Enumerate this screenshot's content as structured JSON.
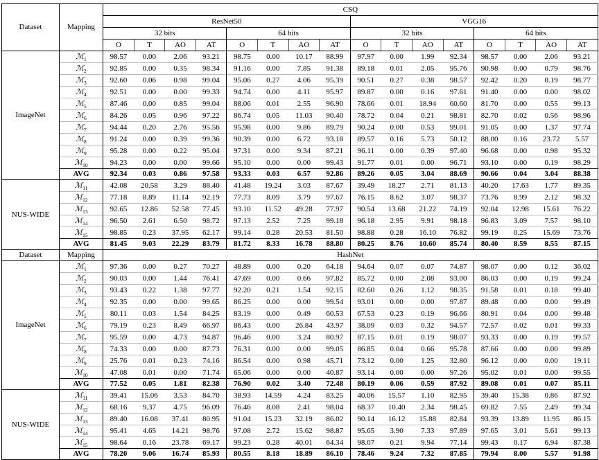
{
  "table": {
    "corner": {
      "dataset": "Dataset",
      "mapping": "Mapping"
    },
    "map_symbol": "ℳ",
    "avg_label": "AVG",
    "methods": {
      "top": "CSQ",
      "mid": "HashNet"
    },
    "networks": [
      "ResNet50",
      "VGG16"
    ],
    "bit_widths": [
      "32 bits",
      "64 bits"
    ],
    "metrics": [
      "O",
      "T",
      "AO",
      "AT"
    ],
    "sections": [
      {
        "method": "CSQ",
        "groups": [
          {
            "dataset": "ImageNet",
            "rows": [
              {
                "map": "ℳ",
                "sub": "1",
                "values": [
                  "98.57",
                  "0.00",
                  "2.06",
                  "93.21",
                  "98.75",
                  "0.00",
                  "10.17",
                  "88.99",
                  "97.97",
                  "0.00",
                  "1.99",
                  "92.34",
                  "98.57",
                  "0.00",
                  "2.06",
                  "93.21"
                ]
              },
              {
                "map": "ℳ",
                "sub": "2",
                "values": [
                  "92.85",
                  "0.00",
                  "0.35",
                  "98.34",
                  "91.16",
                  "0.00",
                  "7.85",
                  "91.38",
                  "89.18",
                  "0.01",
                  "2.05",
                  "95.76",
                  "90.98",
                  "0.00",
                  "0.79",
                  "98.76"
                ]
              },
              {
                "map": "ℳ",
                "sub": "3",
                "values": [
                  "92.60",
                  "0.06",
                  "0.98",
                  "99.04",
                  "95.06",
                  "0.27",
                  "4.06",
                  "95.39",
                  "90.51",
                  "0.27",
                  "0.38",
                  "98.57",
                  "92.42",
                  "0.20",
                  "0.19",
                  "98.77"
                ]
              },
              {
                "map": "ℳ",
                "sub": "4",
                "values": [
                  "92.51",
                  "0.00",
                  "0.00",
                  "99.33",
                  "94.74",
                  "0.00",
                  "4.11",
                  "95.97",
                  "89.87",
                  "0.00",
                  "0.16",
                  "97.61",
                  "91.40",
                  "0.00",
                  "0.00",
                  "98.02"
                ]
              },
              {
                "map": "ℳ",
                "sub": "5",
                "values": [
                  "87.46",
                  "0.00",
                  "0.85",
                  "99.04",
                  "88.06",
                  "0.01",
                  "2.55",
                  "96.90",
                  "78.66",
                  "0.01",
                  "18.94",
                  "60.60",
                  "81.70",
                  "0.00",
                  "0.55",
                  "99.13"
                ]
              },
              {
                "map": "ℳ",
                "sub": "6",
                "values": [
                  "84.26",
                  "0.05",
                  "0.96",
                  "97.22",
                  "86.74",
                  "0.05",
                  "11.03",
                  "90.40",
                  "78.72",
                  "0.04",
                  "0.21",
                  "98.81",
                  "82.70",
                  "0.02",
                  "0.56",
                  "98.96"
                ]
              },
              {
                "map": "ℳ",
                "sub": "7",
                "values": [
                  "94.44",
                  "0.20",
                  "2.76",
                  "95.56",
                  "95.98",
                  "0.00",
                  "9.86",
                  "89.79",
                  "90.24",
                  "0.00",
                  "0.53",
                  "99.01",
                  "91.05",
                  "0.00",
                  "1.37",
                  "97.74"
                ]
              },
              {
                "map": "ℳ",
                "sub": "8",
                "values": [
                  "91.24",
                  "0.00",
                  "0.39",
                  "99.36",
                  "90.39",
                  "0.00",
                  "6.72",
                  "93.18",
                  "89.57",
                  "0.16",
                  "5.73",
                  "50.12",
                  "88.00",
                  "0.16",
                  "23.72",
                  "5.57"
                ]
              },
              {
                "map": "ℳ",
                "sub": "9",
                "values": [
                  "95.28",
                  "0.00",
                  "0.22",
                  "95.04",
                  "97.31",
                  "0.00",
                  "9.34",
                  "87.21",
                  "96.11",
                  "0.00",
                  "0.39",
                  "97.40",
                  "96.68",
                  "0.00",
                  "0.98",
                  "95.32"
                ]
              },
              {
                "map": "ℳ",
                "sub": "10",
                "values": [
                  "94.23",
                  "0.00",
                  "0.00",
                  "99.66",
                  "95.10",
                  "0.00",
                  "0.00",
                  "99.43",
                  "91.77",
                  "0.01",
                  "0.00",
                  "96.71",
                  "93.10",
                  "0.00",
                  "0.19",
                  "98.29"
                ]
              },
              {
                "map": "AVG",
                "values": [
                  "92.34",
                  "0.03",
                  "0.86",
                  "97.58",
                  "93.33",
                  "0.03",
                  "6.57",
                  "92.86",
                  "89.26",
                  "0.05",
                  "3.04",
                  "88.69",
                  "90.66",
                  "0.04",
                  "3.04",
                  "88.38"
                ]
              }
            ]
          },
          {
            "dataset": "NUS-WIDE",
            "rows": [
              {
                "map": "ℳ",
                "sub": "11",
                "values": [
                  "42.08",
                  "20.58",
                  "3.29",
                  "88.40",
                  "41.48",
                  "19.24",
                  "3.03",
                  "87.67",
                  "39.49",
                  "18.27",
                  "2.71",
                  "81.13",
                  "40.20",
                  "17.63",
                  "1.77",
                  "89.35"
                ]
              },
              {
                "map": "ℳ",
                "sub": "12",
                "values": [
                  "77.18",
                  "8.89",
                  "11.14",
                  "92.19",
                  "77.73",
                  "8.09",
                  "3.79",
                  "97.67",
                  "76.15",
                  "8.62",
                  "3.07",
                  "98.37",
                  "73.76",
                  "8.99",
                  "2.12",
                  "98.32"
                ]
              },
              {
                "map": "ℳ",
                "sub": "13",
                "values": [
                  "92.65",
                  "12.86",
                  "52.58",
                  "77.45",
                  "93.10",
                  "11.52",
                  "49.28",
                  "77.97",
                  "90.54",
                  "13.68",
                  "21.22",
                  "74.19",
                  "92.04",
                  "12.98",
                  "15.61",
                  "76.22"
                ]
              },
              {
                "map": "ℳ",
                "sub": "14",
                "values": [
                  "96.50",
                  "2.61",
                  "6.50",
                  "98.72",
                  "97.13",
                  "2.52",
                  "7.25",
                  "99.18",
                  "96.18",
                  "2.95",
                  "9.91",
                  "98.18",
                  "96.83",
                  "3.09",
                  "7.57",
                  "98.10"
                ]
              },
              {
                "map": "ℳ",
                "sub": "15",
                "values": [
                  "98.85",
                  "0.23",
                  "37.95",
                  "62.17",
                  "99.14",
                  "0.28",
                  "20.53",
                  "81.50",
                  "98.88",
                  "0.28",
                  "16.10",
                  "76.82",
                  "99.19",
                  "0.25",
                  "15.69",
                  "73.76"
                ]
              },
              {
                "map": "AVG",
                "values": [
                  "81.45",
                  "9.03",
                  "22.29",
                  "83.79",
                  "81.72",
                  "8.33",
                  "16.78",
                  "88.80",
                  "80.25",
                  "8.76",
                  "10.60",
                  "85.74",
                  "80.40",
                  "8.59",
                  "8.55",
                  "87.15"
                ]
              }
            ]
          }
        ]
      },
      {
        "method": "HashNet",
        "groups": [
          {
            "dataset": "ImageNet",
            "rows": [
              {
                "map": "ℳ",
                "sub": "1",
                "values": [
                  "97.36",
                  "0.00",
                  "0.27",
                  "70.27",
                  "48.89",
                  "0.00",
                  "0.20",
                  "64.18",
                  "94.64",
                  "0.07",
                  "0.07",
                  "74.87",
                  "98.07",
                  "0.00",
                  "0.12",
                  "36.02"
                ]
              },
              {
                "map": "ℳ",
                "sub": "2",
                "values": [
                  "90.03",
                  "0.00",
                  "1.44",
                  "76.41",
                  "47.69",
                  "0.00",
                  "0.66",
                  "97.82",
                  "85.72",
                  "0.00",
                  "2.08",
                  "93.00",
                  "86.03",
                  "0.00",
                  "0.19",
                  "99.24"
                ]
              },
              {
                "map": "ℳ",
                "sub": "3",
                "values": [
                  "93.43",
                  "0.22",
                  "1.38",
                  "97.77",
                  "92.20",
                  "0.21",
                  "1.54",
                  "92.15",
                  "82.60",
                  "0.26",
                  "1.12",
                  "98.35",
                  "91.58",
                  "0.01",
                  "0.18",
                  "99.40"
                ]
              },
              {
                "map": "ℳ",
                "sub": "4",
                "values": [
                  "92.35",
                  "0.00",
                  "0.00",
                  "99.65",
                  "86.25",
                  "0.00",
                  "0.00",
                  "99.54",
                  "93.01",
                  "0.00",
                  "0.00",
                  "97.87",
                  "89.48",
                  "0.00",
                  "0.00",
                  "99.49"
                ]
              },
              {
                "map": "ℳ",
                "sub": "5",
                "values": [
                  "80.11",
                  "0.03",
                  "1.54",
                  "84.25",
                  "83.19",
                  "0.00",
                  "0.49",
                  "60.53",
                  "67.53",
                  "0.23",
                  "0.19",
                  "96.66",
                  "80.91",
                  "0.04",
                  "0.00",
                  "99.48"
                ]
              },
              {
                "map": "ℳ",
                "sub": "6",
                "values": [
                  "79.19",
                  "0.23",
                  "8.49",
                  "66.97",
                  "86.43",
                  "0.00",
                  "26.84",
                  "43.97",
                  "38.09",
                  "0.03",
                  "0.32",
                  "94.57",
                  "72.57",
                  "0.02",
                  "0.01",
                  "99.33"
                ]
              },
              {
                "map": "ℳ",
                "sub": "7",
                "values": [
                  "95.59",
                  "0.00",
                  "4.73",
                  "94.87",
                  "96.46",
                  "0.00",
                  "3.24",
                  "80.97",
                  "87.15",
                  "0.01",
                  "0.19",
                  "98.07",
                  "93.33",
                  "0.00",
                  "0.19",
                  "99.57"
                ]
              },
              {
                "map": "ℳ",
                "sub": "8",
                "values": [
                  "74.33",
                  "0.00",
                  "0.00",
                  "87.73",
                  "76.31",
                  "0.00",
                  "0.00",
                  "99.05",
                  "86.85",
                  "0.04",
                  "0.66",
                  "95.78",
                  "87.66",
                  "0.00",
                  "0.00",
                  "99.89"
                ]
              },
              {
                "map": "ℳ",
                "sub": "9",
                "values": [
                  "25.76",
                  "0.01",
                  "0.23",
                  "74.16",
                  "86.54",
                  "0.00",
                  "0.98",
                  "45.71",
                  "73.12",
                  "0.00",
                  "1.25",
                  "32.80",
                  "96.12",
                  "0.00",
                  "0.00",
                  "19.11"
                ]
              },
              {
                "map": "ℳ",
                "sub": "10",
                "values": [
                  "47.08",
                  "0.01",
                  "0.00",
                  "71.74",
                  "65.06",
                  "0.00",
                  "0.00",
                  "40.87",
                  "93.14",
                  "0.00",
                  "0.00",
                  "97.26",
                  "95.02",
                  "0.01",
                  "0.00",
                  "99.55"
                ]
              },
              {
                "map": "AVG",
                "values": [
                  "77.52",
                  "0.05",
                  "1.81",
                  "82.38",
                  "76.90",
                  "0.02",
                  "3.40",
                  "72.48",
                  "80.19",
                  "0.06",
                  "0.59",
                  "87.92",
                  "89.08",
                  "0.01",
                  "0.07",
                  "85.11"
                ]
              }
            ]
          },
          {
            "dataset": "NUS-WIDE",
            "rows": [
              {
                "map": "ℳ",
                "sub": "11",
                "values": [
                  "39.41",
                  "15.06",
                  "3.53",
                  "84.70",
                  "38.93",
                  "14.59",
                  "4.24",
                  "83.25",
                  "40.06",
                  "15.57",
                  "1.10",
                  "82.95",
                  "39.40",
                  "15.38",
                  "0.86",
                  "87.92"
                ]
              },
              {
                "map": "ℳ",
                "sub": "12",
                "values": [
                  "68.16",
                  "9.37",
                  "4.75",
                  "96.09",
                  "76.46",
                  "8.08",
                  "2.41",
                  "98.04",
                  "68.37",
                  "10.40",
                  "2.34",
                  "98.45",
                  "69.82",
                  "7.55",
                  "2.49",
                  "99.34"
                ]
              },
              {
                "map": "ℳ",
                "sub": "13",
                "values": [
                  "89.40",
                  "16.08",
                  "37.41",
                  "80.95",
                  "91.04",
                  "15.23",
                  "32.19",
                  "86.02",
                  "90.14",
                  "16.12",
                  "15.88",
                  "82.84",
                  "93.39",
                  "13.89",
                  "11.95",
                  "86.15"
                ]
              },
              {
                "map": "ℳ",
                "sub": "14",
                "values": [
                  "95.41",
                  "4.65",
                  "14.21",
                  "98.76",
                  "97.08",
                  "2.72",
                  "15.62",
                  "98.87",
                  "95.65",
                  "3.90",
                  "7.33",
                  "97.89",
                  "97.65",
                  "3.01",
                  "5.61",
                  "99.13"
                ]
              },
              {
                "map": "ℳ",
                "sub": "15",
                "values": [
                  "98.64",
                  "0.16",
                  "23.78",
                  "69.17",
                  "99.23",
                  "0.28",
                  "40.01",
                  "64.34",
                  "98.07",
                  "0.21",
                  "9.94",
                  "77.14",
                  "99.43",
                  "0.17",
                  "6.94",
                  "87.38"
                ]
              },
              {
                "map": "AVG",
                "values": [
                  "78.20",
                  "9.06",
                  "16.74",
                  "85.93",
                  "80.55",
                  "8.18",
                  "18.89",
                  "86.10",
                  "78.46",
                  "9.24",
                  "7.32",
                  "87.85",
                  "79.94",
                  "8.00",
                  "5.57",
                  "91.98"
                ]
              }
            ]
          }
        ]
      }
    ]
  }
}
